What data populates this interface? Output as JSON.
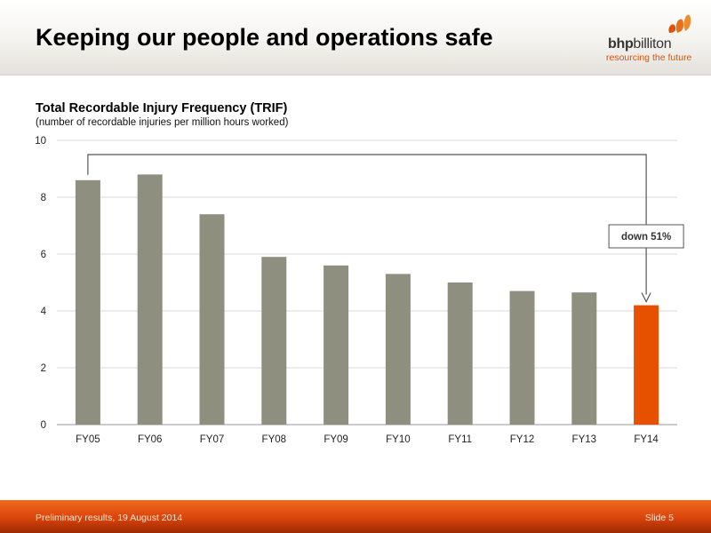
{
  "slide": {
    "title": "Keeping our people and operations safe"
  },
  "logo": {
    "name_bold": "bhp",
    "name_rest": "billiton",
    "tagline": "resourcing the future"
  },
  "footer": {
    "left": "Preliminary results, 19 August 2014",
    "right": "Slide 5"
  },
  "colors": {
    "bar": "#8f8f80",
    "highlight_bar": "#e65100",
    "accent": "#e05206"
  },
  "chart_data": {
    "type": "bar",
    "title": "Total Recordable Injury Frequency (TRIF)",
    "subtitle": "(number of recordable injuries per million hours worked)",
    "categories": [
      "FY05",
      "FY06",
      "FY07",
      "FY08",
      "FY09",
      "FY10",
      "FY11",
      "FY12",
      "FY13",
      "FY14"
    ],
    "values": [
      8.6,
      8.8,
      7.4,
      5.9,
      5.6,
      5.3,
      5.0,
      4.7,
      4.65,
      4.2
    ],
    "highlight_category": "FY14",
    "ylim": [
      0,
      10
    ],
    "yticks": [
      0,
      2,
      4,
      6,
      8,
      10
    ],
    "grid": true,
    "legend": "none",
    "annotation": {
      "text": "down 51%",
      "from": "FY05",
      "to": "FY14"
    }
  }
}
